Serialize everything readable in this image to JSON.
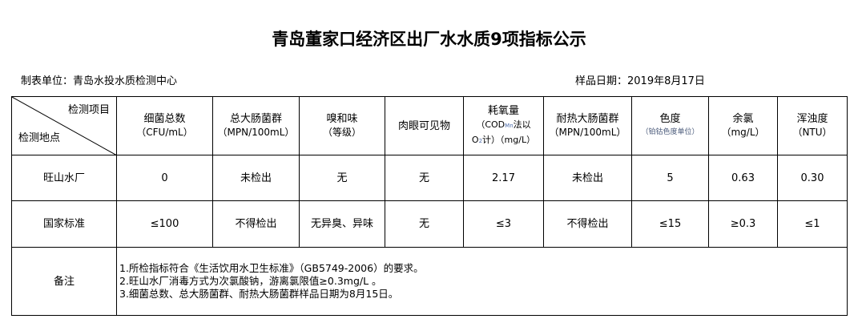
{
  "title": "青岛董家口经济区出厂水水质9项指标公示",
  "unit_label": "制表单位：青岛水投水质检测中心",
  "date_label": "样品日期：2019年8月17日",
  "corner": {
    "top": "检测项目",
    "bottom": "检测地点"
  },
  "columns": [
    {
      "name": "细菌总数",
      "unit": "（CFU/mL）"
    },
    {
      "name": "总大肠菌群",
      "unit": "（MPN/100mL）"
    },
    {
      "name": "嗅和味",
      "unit": "（等级）"
    },
    {
      "name": "肉眼可见物",
      "unit": ""
    },
    {
      "name": "耗氧量",
      "unit_a": "（COD",
      "unit_sub": "Mn",
      "unit_b": "法以",
      "unit_c": "O",
      "unit_sub2": "2",
      "unit_d": "计）（mg/L）"
    },
    {
      "name": "耐热大肠菌群",
      "unit": "（MPN/100mL）"
    },
    {
      "name": "色度",
      "unit": "（铂钴色度单位）"
    },
    {
      "name": "余氯",
      "unit": "（mg/L）"
    },
    {
      "name": "浑浊度",
      "unit": "（NTU）"
    }
  ],
  "rows": [
    {
      "label": "旺山水厂",
      "values": [
        "0",
        "未检出",
        "无",
        "无",
        "2.17",
        "未检出",
        "5",
        "0.63",
        "0.30"
      ]
    },
    {
      "label": "国家标准",
      "values": [
        "≤100",
        "不得检出",
        "无异臭、异味",
        "无",
        "≤3",
        "不得检出",
        "≤15",
        "≥0.3",
        "≤1"
      ]
    }
  ],
  "notes": {
    "label": "备注",
    "lines": [
      "1.所检指标符合《生活饮用水卫生标准》（GB5749-2006）的要求。",
      "2.旺山水厂消毒方式为次氯酸钠，游离氯限值≥0.3mg/L 。",
      "3.细菌总数、总大肠菌群、耐热大肠菌群样品日期为8月15日。"
    ]
  }
}
